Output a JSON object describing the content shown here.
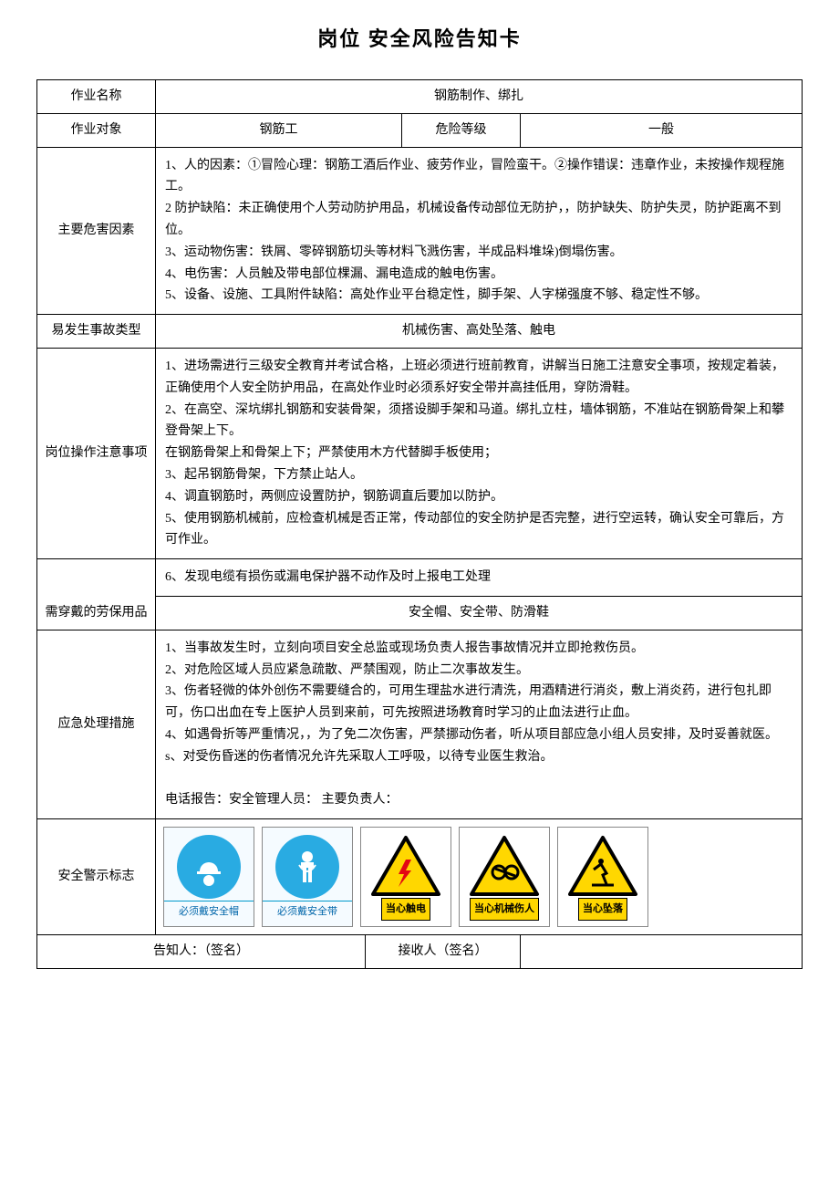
{
  "title": "岗位 安全风险告知卡",
  "rows": {
    "job_name_label": "作业名称",
    "job_name_value": "钢筋制作、绑扎",
    "job_target_label": "作业对象",
    "job_target_value": "钢筋工",
    "risk_level_label": "危险等级",
    "risk_level_value": "一般",
    "hazard_label": "主要危害因素",
    "hazard_text": "1、人的因素：①冒险心理：钢筋工酒后作业、疲劳作业，冒险蛮干。②操作错误：违章作业，未按操作规程施工。\n2  防护缺陷：未正确使用个人劳动防护用品，机械设备传动部位无防护，，防护缺失、防护失灵，防护距离不到位。\n3、运动物伤害：铁屑、零碎钢筋切头等材料飞溅伤害，半成品料堆垛)倒塌伤害。\n4、电伤害：人员触及带电部位棵漏、漏电造成的触电伤害。\n5、设备、设施、工具附件缺陷：高处作业平台稳定性，脚手架、人字梯强度不够、稳定性不够。",
    "accident_label": "易发生事故类型",
    "accident_value": "机械伤害、高处坠落、触电",
    "caution_label": "岗位操作注意事项",
    "caution_text": "1、进场需进行三级安全教育并考试合格，上班必须进行班前教育，讲解当日施工注意安全事项，按规定着装，正确使用个人安全防护用品，在高处作业时必须系好安全带并高挂低用，穿防滑鞋。\n2、在高空、深坑绑扎钢筋和安装骨架，须搭设脚手架和马道。绑扎立柱，墙体钢筋，不准站在钢筋骨架上和攀登骨架上下。\n在钢筋骨架上和骨架上下；严禁使用木方代替脚手板使用；\n3、起吊钢筋骨架，下方禁止站人。\n4、调直钢筋时，两侧应设置防护，钢筋调直后要加以防护。\n5、使用钢筋机械前，应检查机械是否正常，传动部位的安全防护是否完整，进行空运转，确认安全可靠后，方可作业。",
    "caution_extra": "6、发现电缆有损伤或漏电保护器不动作及时上报电工处理",
    "ppe_label": "需穿戴的劳保用品",
    "ppe_value": "安全帽、安全带、防滑鞋",
    "emergency_label": "应急处理措施",
    "emergency_text": "1、当事故发生时，立刻向项目安全总监或现场负责人报告事故情况并立即抢救伤员。\n2、对危险区域人员应紧急疏散、严禁围观，防止二次事故发生。\n3、伤者轻微的体外创伤不需要缝合的，可用生理盐水进行清洗，用酒精进行消炎，敷上消炎药，进行包扎即可，伤口出血在专上医护人员到来前，可先按照进场教育时学习的止血法进行止血。\n4、如遇骨折等严重情况，，为了免二次伤害，严禁挪动伤者，听从项目部应急小组人员安排，及时妥善就医。\ns、对受伤昏迷的伤者情况允许先采取人工呼吸，以待专业医生救治。\n\n电话报告：安全管理人员：                                      主要负责人：",
    "signs_label": "安全警示标志",
    "informer_label": "告知人：（签名）",
    "receiver_label": "接收人（签名）"
  },
  "signs": [
    {
      "type": "blue",
      "name": "helmet-sign",
      "caption": "必须戴安全帽",
      "icon_color": "#29abe2"
    },
    {
      "type": "blue",
      "name": "belt-sign",
      "caption": "必须戴安全带",
      "icon_color": "#29abe2"
    },
    {
      "type": "yellow",
      "name": "electric-sign",
      "caption": "当心触电",
      "tri_border": "#000",
      "tri_fill": "#ffd700"
    },
    {
      "type": "yellow",
      "name": "mechanical-sign",
      "caption": "当心机械伤人",
      "tri_border": "#000",
      "tri_fill": "#ffd700"
    },
    {
      "type": "yellow",
      "name": "fall-sign",
      "caption": "当心坠落",
      "tri_border": "#000",
      "tri_fill": "#ffd700"
    }
  ]
}
